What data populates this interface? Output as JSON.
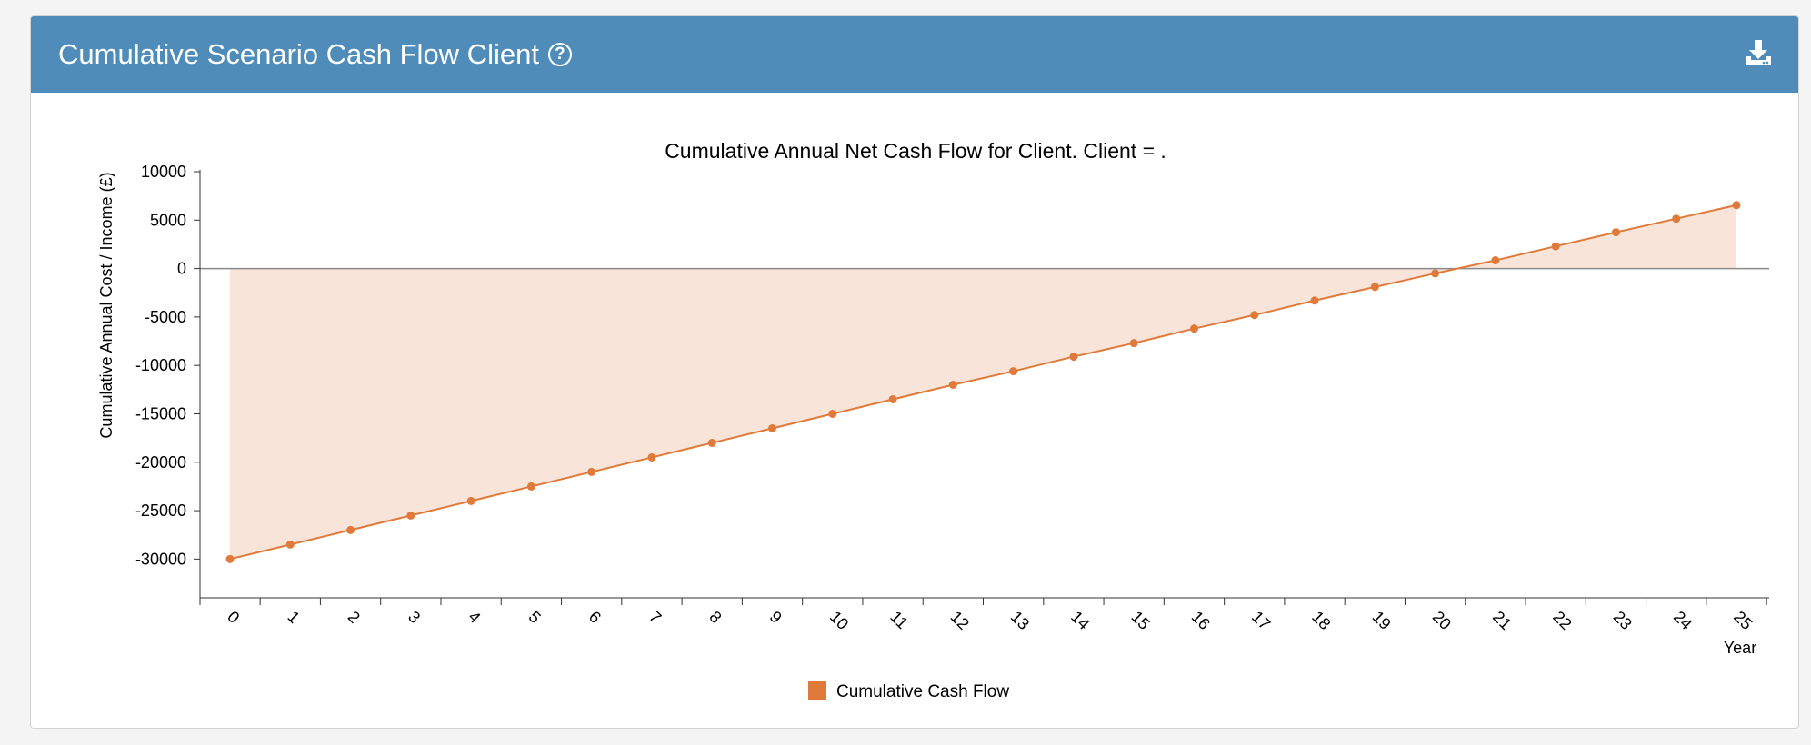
{
  "header": {
    "title": "Cumulative Scenario Cash Flow Client",
    "help_icon": "question-circle-icon",
    "download_icon": "download-icon"
  },
  "colors": {
    "header_bg": "#4f8cba",
    "series_line": "#e07a3a",
    "series_fill": "#f8e4d8"
  },
  "chart_data": {
    "type": "area",
    "title": "Cumulative Annual Net Cash Flow for Client. Client = .",
    "xlabel": "Year",
    "ylabel": "Cumulative Annual Cost / Income (£)",
    "x": [
      0,
      1,
      2,
      3,
      4,
      5,
      6,
      7,
      8,
      9,
      10,
      11,
      12,
      13,
      14,
      15,
      16,
      17,
      18,
      19,
      20,
      21,
      22,
      23,
      24,
      25
    ],
    "series": [
      {
        "name": "Cumulative Cash Flow",
        "values": [
          -30000,
          -28500,
          -27000,
          -25500,
          -24000,
          -22500,
          -21000,
          -19500,
          -18000,
          -16500,
          -15000,
          -13500,
          -12000,
          -10600,
          -9100,
          -7700,
          -6200,
          -4800,
          -3300,
          -1900,
          -500,
          850,
          2300,
          3750,
          5150,
          6550
        ]
      }
    ],
    "ylim": [
      -34000,
      10000
    ],
    "yticks": [
      10000,
      5000,
      0,
      -5000,
      -10000,
      -15000,
      -20000,
      -25000,
      -30000
    ],
    "legend_position": "bottom-center",
    "grid": false
  }
}
